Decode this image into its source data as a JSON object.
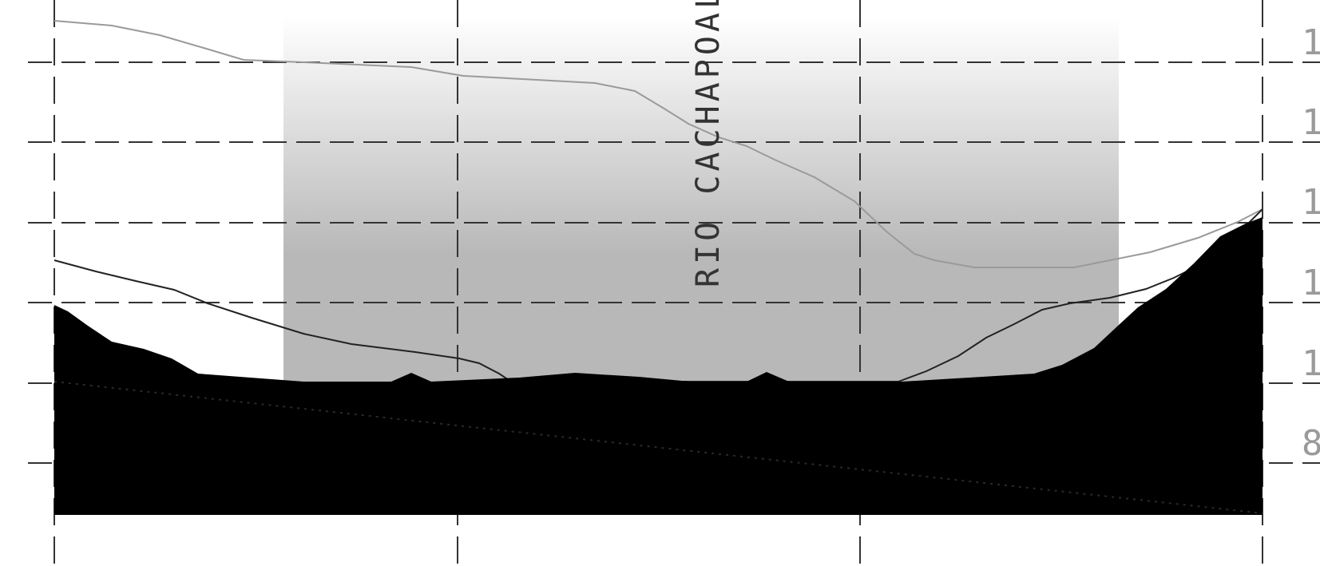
{
  "river_label": "RIO CACHAPOAL",
  "elevation_labels": [
    "1",
    "1",
    "1",
    "1",
    "1",
    "8"
  ],
  "colors": {
    "terrain": "#000000",
    "upper_profile": "#9a9a9a",
    "lower_profile": "#222222",
    "grid": "#333333",
    "channel_gradient_top": "#ffffff",
    "channel_gradient_bottom": "#b8b8b8"
  }
}
